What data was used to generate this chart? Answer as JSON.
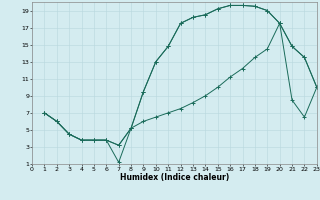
{
  "xlabel": "Humidex (Indice chaleur)",
  "bg_color": "#d4ecf0",
  "grid_color": "#b8d8de",
  "line_color": "#1a6b5a",
  "xlim": [
    0,
    23
  ],
  "ylim": [
    1,
    20
  ],
  "xticks": [
    0,
    1,
    2,
    3,
    4,
    5,
    6,
    7,
    8,
    9,
    10,
    11,
    12,
    13,
    14,
    15,
    16,
    17,
    18,
    19,
    20,
    21,
    22,
    23
  ],
  "yticks": [
    1,
    3,
    5,
    7,
    9,
    11,
    13,
    15,
    17,
    19
  ],
  "line1_x": [
    1,
    2,
    3,
    4,
    5,
    6,
    7,
    8,
    9,
    10,
    11,
    12,
    13,
    14,
    15,
    16,
    17,
    18,
    19,
    20,
    21,
    22,
    23
  ],
  "line1_y": [
    7.0,
    6.0,
    4.5,
    3.8,
    3.8,
    3.8,
    3.2,
    5.2,
    9.5,
    13.0,
    14.8,
    17.5,
    18.2,
    18.5,
    19.2,
    19.6,
    19.6,
    19.5,
    19.0,
    17.5,
    14.8,
    13.5,
    10.0
  ],
  "line2_x": [
    1,
    2,
    3,
    4,
    5,
    6,
    7,
    8,
    9,
    10,
    11,
    12,
    13,
    14,
    15,
    16,
    17,
    18,
    19,
    20,
    21,
    22,
    23
  ],
  "line2_y": [
    7.0,
    6.0,
    4.5,
    3.8,
    3.8,
    3.8,
    1.2,
    5.2,
    9.5,
    13.0,
    14.8,
    17.5,
    18.2,
    18.5,
    19.2,
    19.6,
    19.6,
    19.5,
    19.0,
    17.5,
    14.8,
    13.5,
    10.0
  ],
  "line3_x": [
    1,
    2,
    3,
    4,
    5,
    6,
    7,
    8,
    9,
    10,
    11,
    12,
    13,
    14,
    15,
    16,
    17,
    18,
    19,
    20,
    21,
    22,
    23
  ],
  "line3_y": [
    7.0,
    6.0,
    4.5,
    3.8,
    3.8,
    3.8,
    3.2,
    5.2,
    6.0,
    6.5,
    7.0,
    7.5,
    8.2,
    9.0,
    10.0,
    11.2,
    12.2,
    13.5,
    14.5,
    17.5,
    8.5,
    6.5,
    10.0
  ],
  "tick_fontsize": 4.5,
  "xlabel_fontsize": 5.5,
  "linewidth": 0.7,
  "markersize": 2.5
}
